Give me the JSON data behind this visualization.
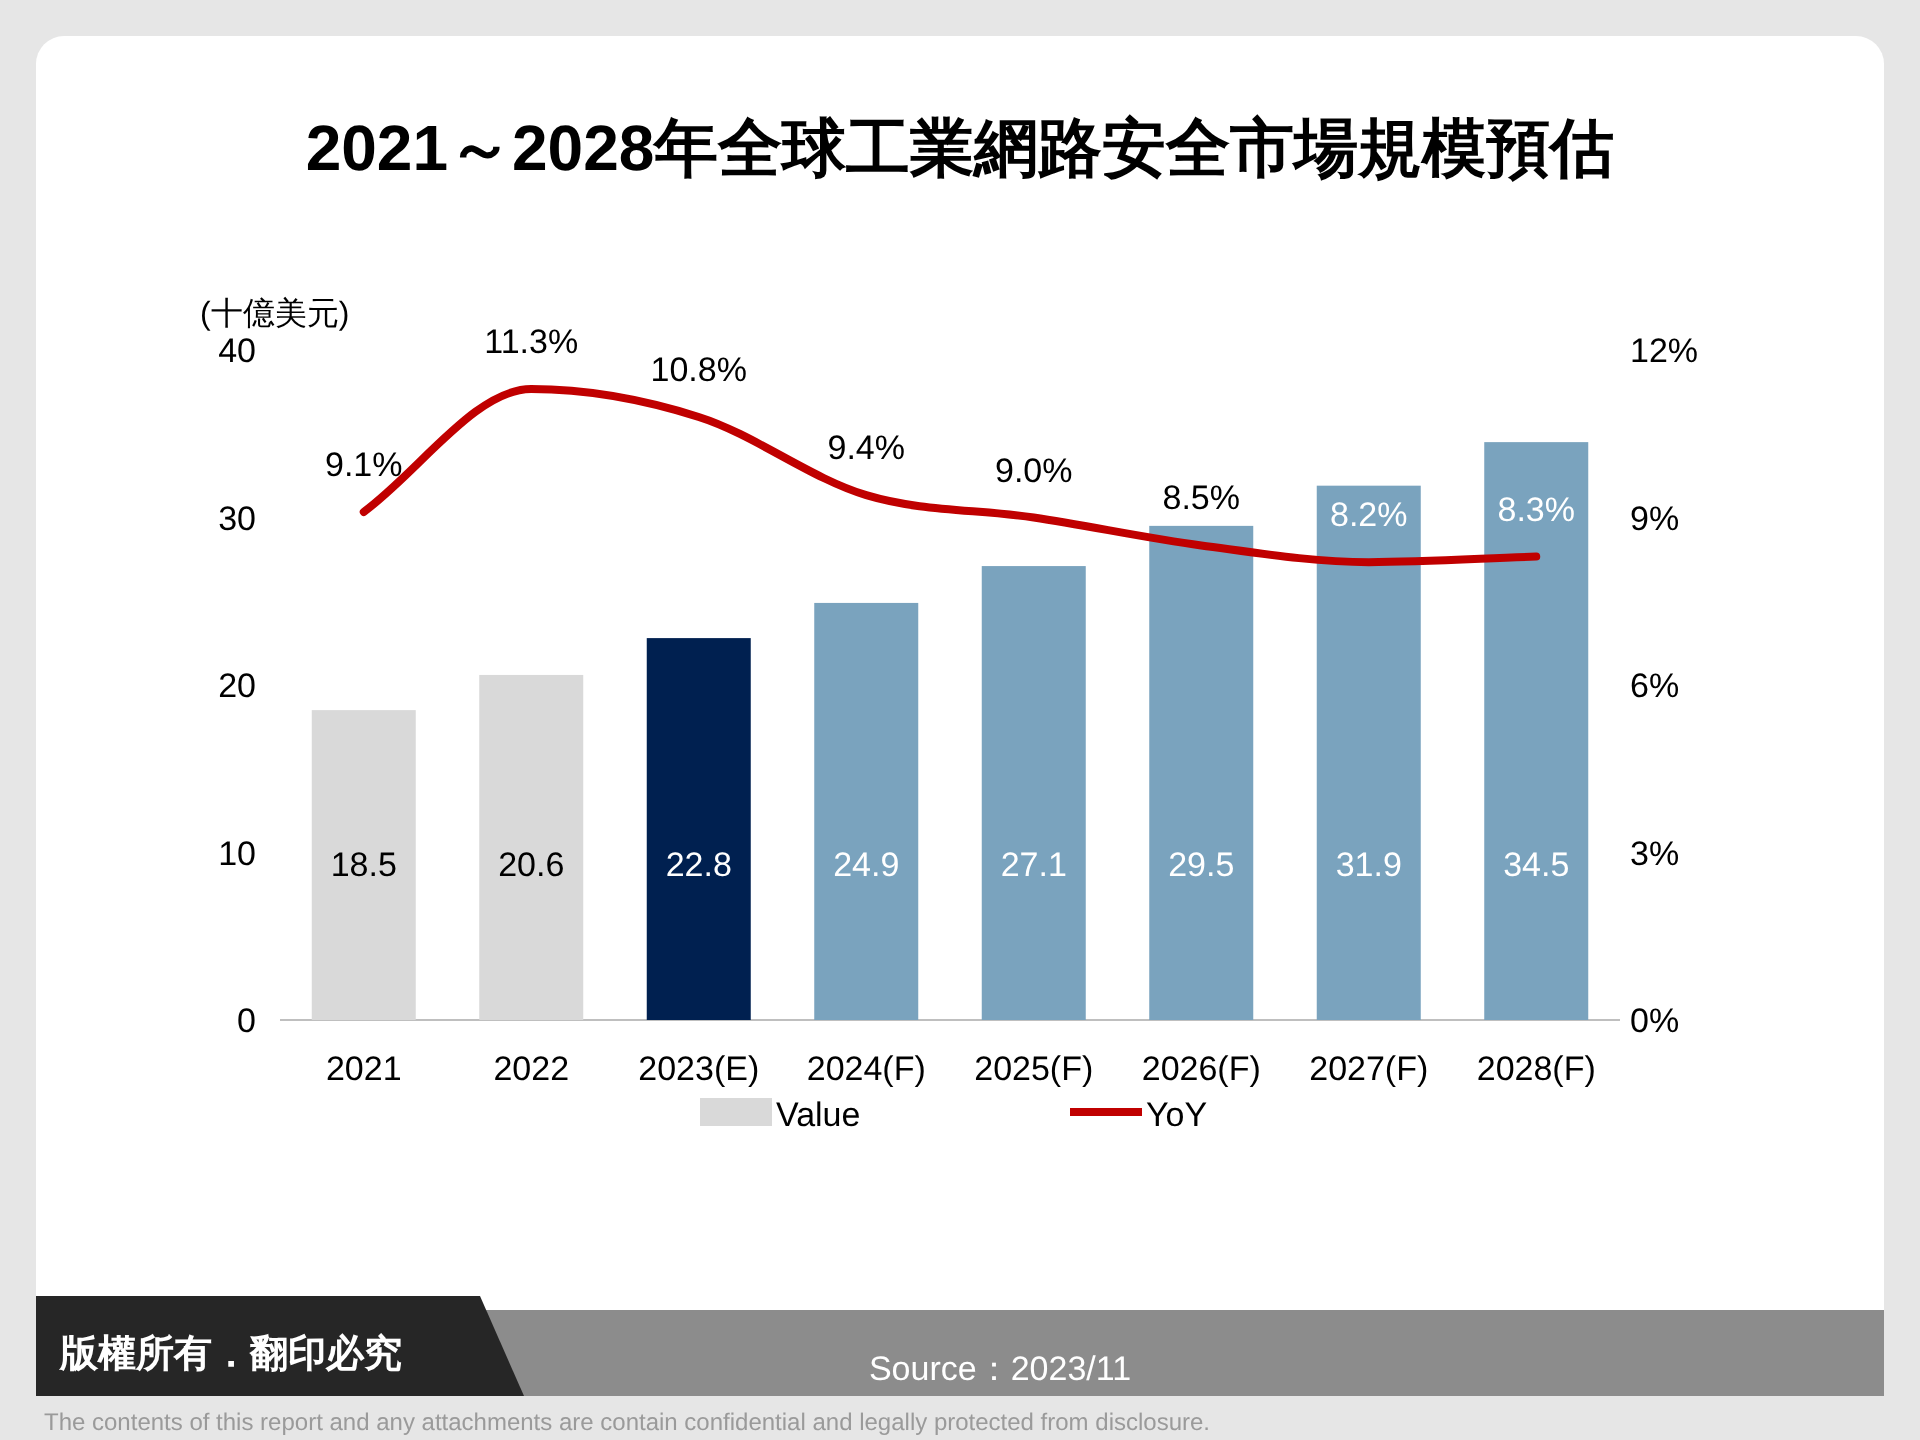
{
  "chart_data": {
    "type": "bar",
    "title": "2021～2028年全球工業網路安全市場規模預估",
    "ylabel": "(十億美元)",
    "categories": [
      "2021",
      "2022",
      "2023(E)",
      "2024(F)",
      "2025(F)",
      "2026(F)",
      "2027(F)",
      "2028(F)"
    ],
    "series": [
      {
        "name": "Value",
        "color": "#d9d9d9",
        "colors": [
          "#d9d9d9",
          "#d9d9d9",
          "#002050",
          "#7aa3be",
          "#7aa3be",
          "#7aa3be",
          "#7aa3be",
          "#7aa3be"
        ],
        "values": [
          18.5,
          20.6,
          22.8,
          24.9,
          27.1,
          29.5,
          31.9,
          34.5
        ],
        "value_labels": [
          "18.5",
          "20.6",
          "22.8",
          "24.9",
          "27.1",
          "29.5",
          "31.9",
          "34.5"
        ]
      },
      {
        "name": "YoY",
        "type": "line",
        "axis": "y2",
        "color": "#c00000",
        "values": [
          9.1,
          11.3,
          10.8,
          9.4,
          9.0,
          8.5,
          8.2,
          8.3
        ],
        "value_labels": [
          "9.1%",
          "11.3%",
          "10.8%",
          "9.4%",
          "9.0%",
          "8.5%",
          "8.2%",
          "8.3%"
        ]
      }
    ],
    "ylim": [
      0,
      40
    ],
    "yticks": [
      0,
      10,
      20,
      30,
      40
    ],
    "y2lim": [
      0,
      12
    ],
    "y2ticks": [
      {
        "value": 0,
        "label": "0%"
      },
      {
        "value": 3,
        "label": "3%"
      },
      {
        "value": 6,
        "label": "6%"
      },
      {
        "value": 9,
        "label": "9%"
      },
      {
        "value": 12,
        "label": "12%"
      }
    ],
    "legend": "bottom",
    "annotations": [
      "版權所有．翻印必究",
      "Source：2023/11",
      "The contents of this report and any attachments are contain confidential and legally protected from disclosure."
    ]
  }
}
